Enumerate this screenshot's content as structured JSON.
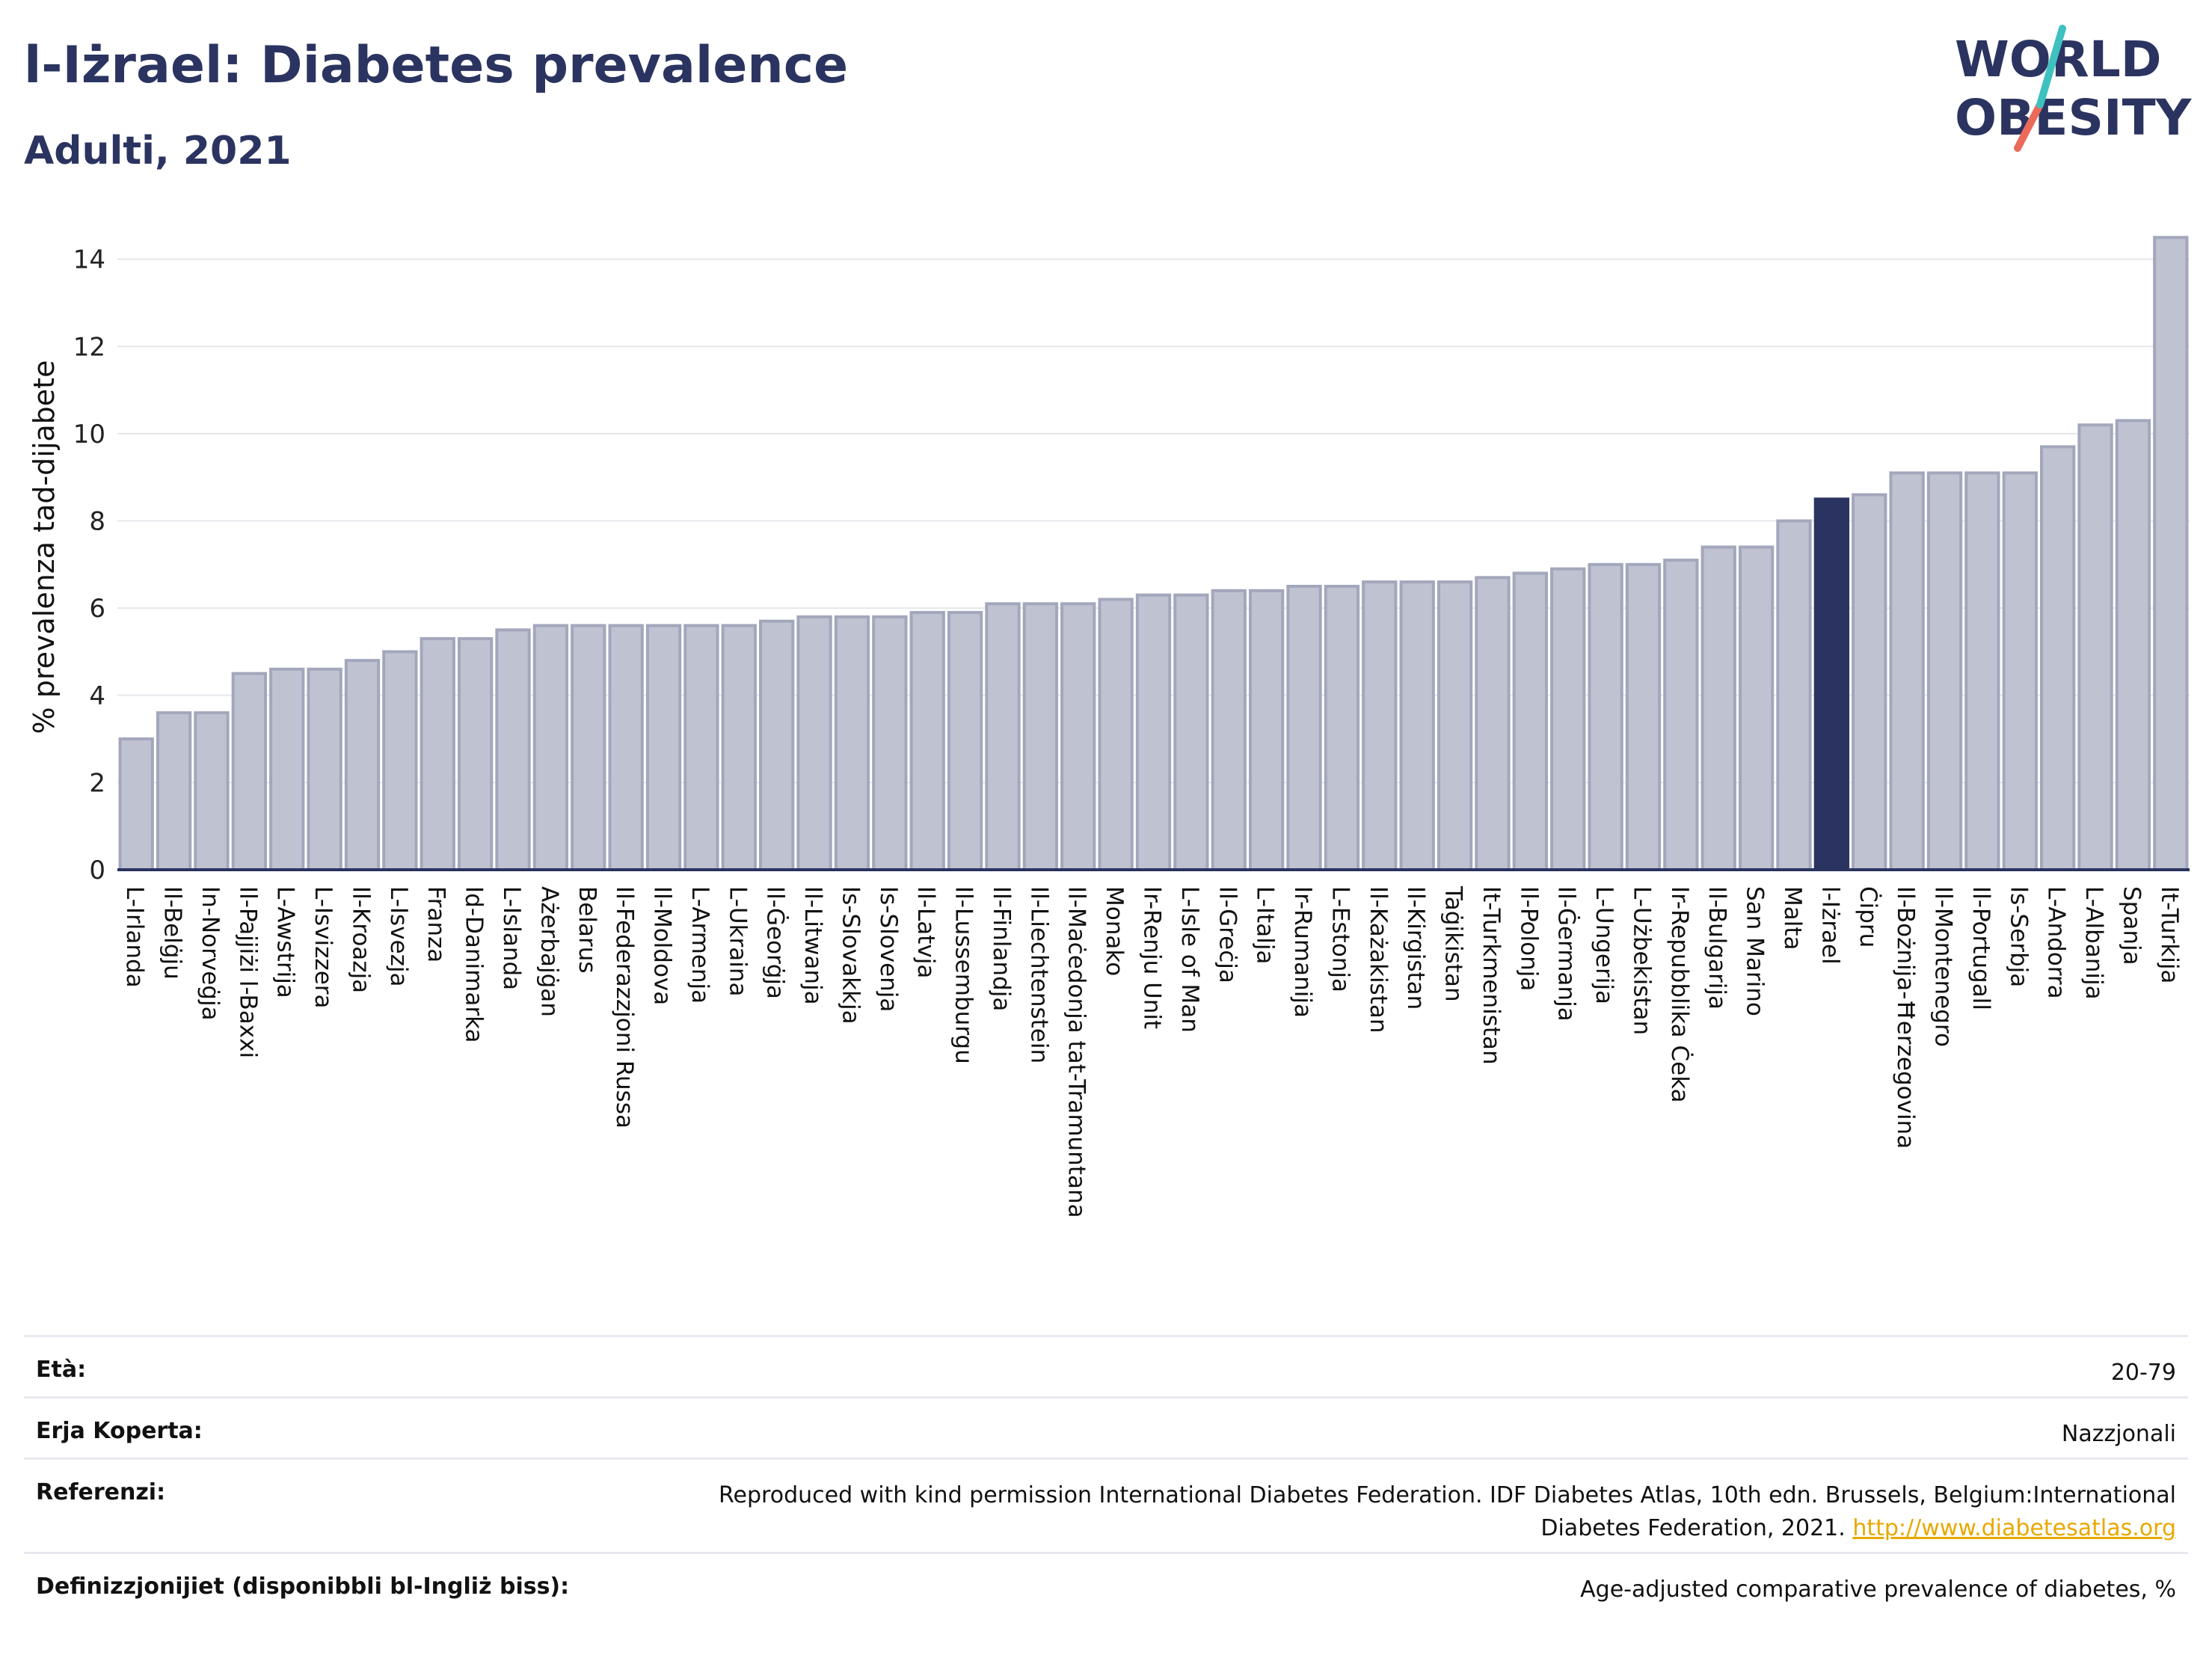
{
  "header": {
    "title": "l-Iżrael: Diabetes prevalence",
    "subtitle": "Adulti, 2021"
  },
  "logo": {
    "line1": "WORLD",
    "line2": "OBESITY"
  },
  "chart_data": {
    "type": "bar",
    "ylabel": "% prevalenza tad-dijabete",
    "xlabel": "",
    "ylim": [
      0,
      14.8
    ],
    "yticks": [
      0,
      2,
      4,
      6,
      8,
      10,
      12,
      14
    ],
    "grid": true,
    "highlight": "l-Iżrael",
    "colors": {
      "bar": "#bfc2d1",
      "bar_edge": "#a3a7bc",
      "highlight": "#2b3460",
      "grid": "#e6e7ec"
    },
    "categories": [
      "L-Irlanda",
      "Il-Belġju",
      "In-Norveġja",
      "Il-Pajjiżi l-Baxxi",
      "L-Awstrija",
      "L-Isvizzera",
      "Il-Kroazja",
      "L-Isvezja",
      "Franza",
      "Id-Danimarka",
      "L-Islanda",
      "Ażerbajġan",
      "Belarus",
      "Il-Federazzjoni Russa",
      "Il-Moldova",
      "L-Armenja",
      "L-Ukraina",
      "Il-Ġeorġja",
      "Il-Litwanja",
      "Is-Slovakkja",
      "Is-Slovenja",
      "Il-Latvja",
      "Il-Lussemburgu",
      "Il-Finlandja",
      "Il-Liechtenstein",
      "Il-Maċedonja tat-Tramuntana",
      "Monako",
      "Ir-Renju Unit",
      "L-Isle of Man",
      "Il-Greċja",
      "L-Italja",
      "Ir-Rumanija",
      "L-Estonja",
      "Il-Każakistan",
      "Il-Kirgistan",
      "Taġikistan",
      "It-Turkmenistan",
      "Il-Polonja",
      "Il-Ġermanja",
      "L-Ungerija",
      "L-Użbekistan",
      "Ir-Repubblika Ċeka",
      "Il-Bulgarija",
      "San Marino",
      "Malta",
      "l-Iżrael",
      "Ċipru",
      "Il-Bożnija-Ħerzegovina",
      "Il-Montenegro",
      "Il-Portugall",
      "Is-Serbja",
      "L-Andorra",
      "L-Albanija",
      "Spanja",
      "It-Turkija"
    ],
    "values": [
      3.0,
      3.6,
      3.6,
      4.5,
      4.6,
      4.6,
      4.8,
      5.0,
      5.3,
      5.3,
      5.5,
      5.6,
      5.6,
      5.6,
      5.6,
      5.6,
      5.6,
      5.7,
      5.8,
      5.8,
      5.8,
      5.9,
      5.9,
      6.1,
      6.1,
      6.1,
      6.2,
      6.3,
      6.3,
      6.4,
      6.4,
      6.5,
      6.5,
      6.6,
      6.6,
      6.6,
      6.7,
      6.8,
      6.9,
      7.0,
      7.0,
      7.1,
      7.4,
      7.4,
      8.0,
      8.5,
      8.6,
      9.1,
      9.1,
      9.1,
      9.1,
      9.7,
      10.2,
      10.3,
      14.5
    ]
  },
  "info": [
    {
      "label": "Età:",
      "value": "20-79"
    },
    {
      "label": "Erja Koperta:",
      "value": "Nazzjonali"
    },
    {
      "label": "Referenzi:",
      "value": "Reproduced with kind permission International Diabetes Federation.  IDF Diabetes Atlas, 10th edn. Brussels, Belgium:International",
      "value2": "Diabetes Federation, 2021.",
      "link": "http://www.diabetesatlas.org"
    },
    {
      "label": "Definizzjonijiet (disponibbli bl-Ingliż biss):",
      "value": "Age-adjusted comparative prevalence of diabetes, %"
    }
  ]
}
